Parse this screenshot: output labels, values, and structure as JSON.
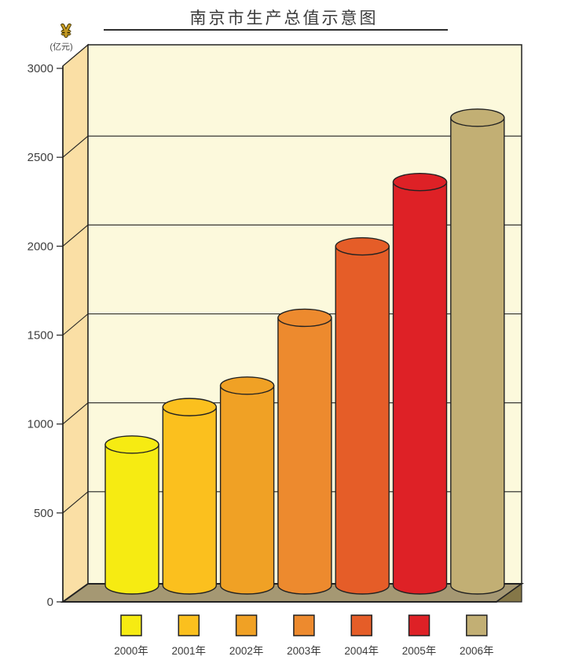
{
  "title": "南京市生产总值示意图",
  "y_axis": {
    "currency_symbol": "¥",
    "unit_label": "(亿元)",
    "ticks": [
      0,
      500,
      1000,
      1500,
      2000,
      2500,
      3000
    ],
    "max": 3000
  },
  "chart_data": {
    "type": "bar",
    "style": "3d-cylinder",
    "title": "南京市生产总值示意图",
    "ylabel": "¥ (亿元)",
    "ylim": [
      0,
      3000
    ],
    "grid": true,
    "legend_position": "bottom",
    "categories": [
      "2000年",
      "2001年",
      "2002年",
      "2003年",
      "2004年",
      "2005年",
      "2006年"
    ],
    "values": [
      810,
      1020,
      1140,
      1520,
      1920,
      2280,
      2640
    ],
    "colors": [
      "#F6EB12",
      "#FBC01E",
      "#F0A125",
      "#ED8A2E",
      "#E55D28",
      "#DE2126",
      "#C2AF74"
    ]
  },
  "scene": {
    "wall_color": "#FADFA5",
    "panel_color": "#FCF9DC",
    "floor_color": "#A59873",
    "floor_shadow_color": "#857748",
    "outline_color": "#222222",
    "tick_label_color": "#3f3f3f",
    "legend_label_color": "#3b3b3b"
  }
}
